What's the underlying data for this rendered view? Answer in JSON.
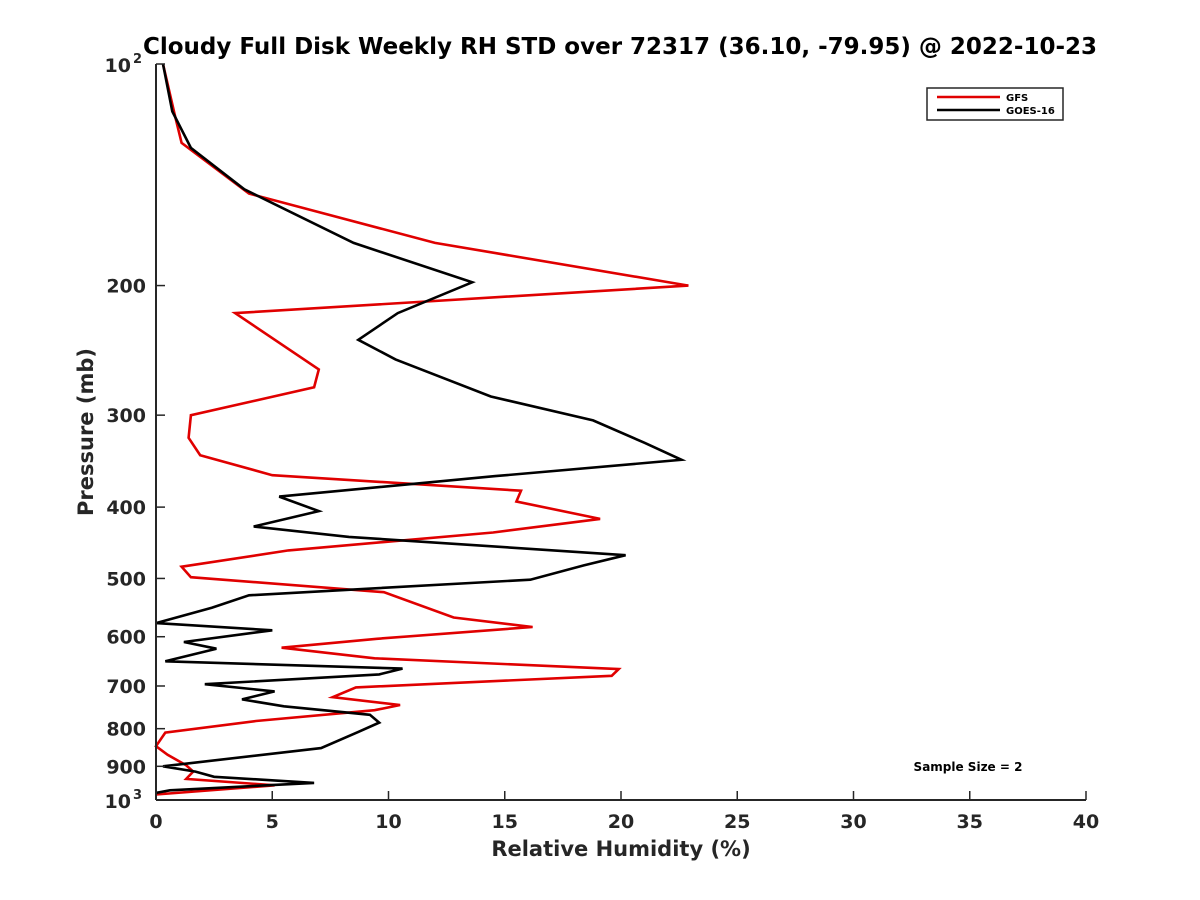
{
  "chart_data": {
    "type": "line",
    "title": "Cloudy Full Disk Weekly RH STD over 72317 (36.10, -79.95) @ 2022-10-23",
    "xlabel": "Relative Humidity (%)",
    "ylabel": "Pressure (mb)",
    "xlim": [
      0,
      40
    ],
    "ylim": [
      100,
      1000
    ],
    "y_scale": "log",
    "y_reversed": true,
    "grid": false,
    "legend_position": "top-right",
    "x_ticks": [
      "0",
      "5",
      "10",
      "15",
      "20",
      "25",
      "30",
      "35",
      "40"
    ],
    "y_ticks": [
      {
        "value": 100,
        "label": "10",
        "sup": "2"
      },
      {
        "value": 200,
        "label": "200",
        "sup": ""
      },
      {
        "value": 300,
        "label": "300",
        "sup": ""
      },
      {
        "value": 400,
        "label": "400",
        "sup": ""
      },
      {
        "value": 500,
        "label": "500",
        "sup": ""
      },
      {
        "value": 600,
        "label": "600",
        "sup": ""
      },
      {
        "value": 700,
        "label": "700",
        "sup": ""
      },
      {
        "value": 800,
        "label": "800",
        "sup": ""
      },
      {
        "value": 900,
        "label": "900",
        "sup": ""
      },
      {
        "value": 1000,
        "label": "10",
        "sup": "3"
      }
    ],
    "annotation": "Sample Size = 2",
    "series": [
      {
        "name": "GFS",
        "color": "#e00000",
        "points": [
          [
            0.3,
            100
          ],
          [
            0.8,
            117
          ],
          [
            1.1,
            128
          ],
          [
            4,
            150
          ],
          [
            12,
            175
          ],
          [
            22.9,
            200
          ],
          [
            3.4,
            218
          ],
          [
            7.0,
            260
          ],
          [
            6.8,
            275
          ],
          [
            1.5,
            300
          ],
          [
            1.4,
            322
          ],
          [
            1.9,
            340
          ],
          [
            5.0,
            362
          ],
          [
            15.7,
            380
          ],
          [
            15.5,
            393
          ],
          [
            19.1,
            415
          ],
          [
            14.5,
            433
          ],
          [
            5.7,
            458
          ],
          [
            1.1,
            482
          ],
          [
            1.5,
            498
          ],
          [
            9.8,
            522
          ],
          [
            12.8,
            565
          ],
          [
            16.2,
            582
          ],
          [
            9.5,
            604
          ],
          [
            5.4,
            621
          ],
          [
            9.4,
            642
          ],
          [
            19.9,
            664
          ],
          [
            19.6,
            678
          ],
          [
            8.6,
            703
          ],
          [
            7.6,
            725
          ],
          [
            10.5,
            743
          ],
          [
            9.4,
            755
          ],
          [
            4.3,
            781
          ],
          [
            0.4,
            810
          ],
          [
            0,
            845
          ],
          [
            0.5,
            868
          ],
          [
            1.3,
            897
          ],
          [
            1.6,
            915
          ],
          [
            1.3,
            936
          ],
          [
            5.1,
            955
          ],
          [
            0,
            983
          ]
        ]
      },
      {
        "name": "GOES-16",
        "color": "#000000",
        "points": [
          [
            0.3,
            100
          ],
          [
            0.7,
            116
          ],
          [
            1.5,
            130
          ],
          [
            3.8,
            148
          ],
          [
            8.5,
            175
          ],
          [
            13.6,
            198
          ],
          [
            10.4,
            218
          ],
          [
            8.7,
            237
          ],
          [
            10.3,
            252
          ],
          [
            14.4,
            283
          ],
          [
            18.8,
            305
          ],
          [
            21.0,
            327
          ],
          [
            22.6,
            345
          ],
          [
            14.6,
            363
          ],
          [
            5.3,
            387
          ],
          [
            7.0,
            405
          ],
          [
            4.2,
            425
          ],
          [
            8.3,
            439
          ],
          [
            20.2,
            465
          ],
          [
            18.4,
            480
          ],
          [
            16.1,
            502
          ],
          [
            4,
            527
          ],
          [
            2.4,
            548
          ],
          [
            0,
            575
          ],
          [
            5.0,
            588
          ],
          [
            1.2,
            610
          ],
          [
            2.6,
            623
          ],
          [
            0.4,
            648
          ],
          [
            10.6,
            663
          ],
          [
            9.6,
            675
          ],
          [
            2.1,
            696
          ],
          [
            5.1,
            712
          ],
          [
            3.7,
            730
          ],
          [
            5.5,
            746
          ],
          [
            9.2,
            766
          ],
          [
            9.6,
            785
          ],
          [
            8.7,
            808
          ],
          [
            7.1,
            850
          ],
          [
            0.3,
            900
          ],
          [
            1.7,
            915
          ],
          [
            2.5,
            930
          ],
          [
            6.8,
            948
          ],
          [
            0.6,
            970
          ],
          [
            0,
            978
          ]
        ]
      }
    ]
  }
}
